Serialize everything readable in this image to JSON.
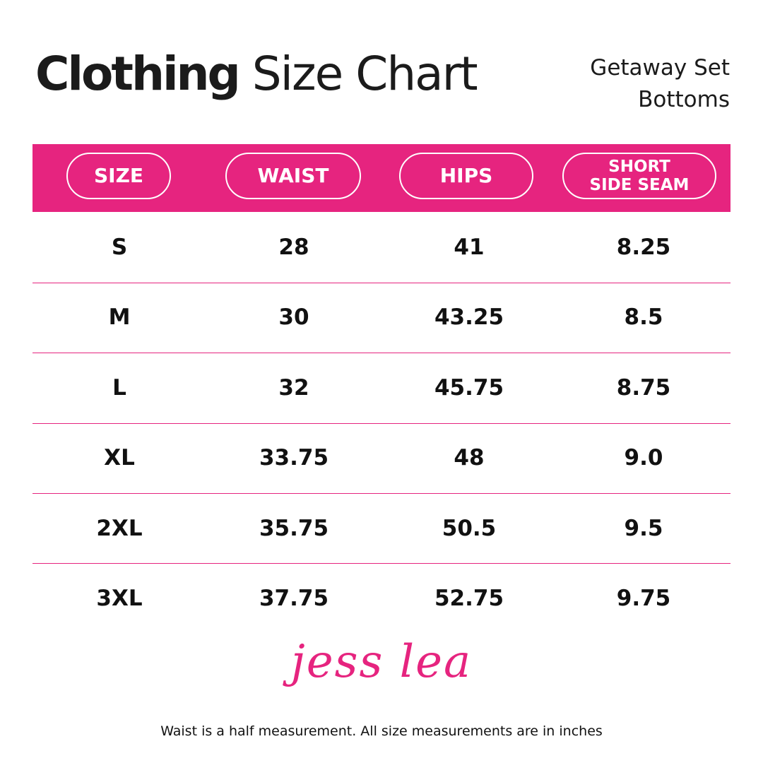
{
  "header": {
    "title_bold": "Clothing",
    "title_rest": "Size Chart",
    "subtitle": [
      "Getaway Set",
      "Bottoms"
    ]
  },
  "table": {
    "columns": [
      [
        "SIZE"
      ],
      [
        "WAIST"
      ],
      [
        "HIPS"
      ],
      [
        "SHORT",
        "SIDE SEAM"
      ]
    ],
    "rows": [
      [
        "S",
        "28",
        "41",
        "8.25"
      ],
      [
        "M",
        "30",
        "43.25",
        "8.5"
      ],
      [
        "L",
        "32",
        "45.75",
        "8.75"
      ],
      [
        "XL",
        "33.75",
        "48",
        "9.0"
      ],
      [
        "2XL",
        "35.75",
        "50.5",
        "9.5"
      ],
      [
        "3XL",
        "37.75",
        "52.75",
        "9.75"
      ]
    ]
  },
  "footer": {
    "logo": "jess lea",
    "note": "Waist is a half measurement. All size measurements are in inches"
  }
}
